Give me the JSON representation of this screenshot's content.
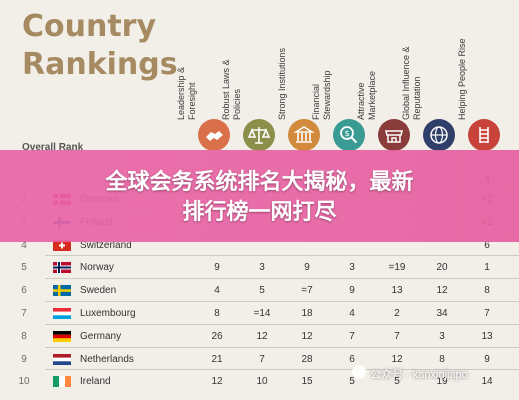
{
  "title_lines": [
    "Country",
    "Rankings"
  ],
  "overall_rank_label": "Overall Rank",
  "columns": [
    {
      "label": "Leadership & Foresight",
      "color": "#d9704a",
      "icon": "hand-shake-icon"
    },
    {
      "label": "Robust Laws & Policies",
      "color": "#8b8f4a",
      "icon": "scales-icon"
    },
    {
      "label": "Strong Institutions",
      "color": "#d28a3d",
      "icon": "building-icon"
    },
    {
      "label": "Financial Stewardship",
      "color": "#3a9a94",
      "icon": "money-magnifier-icon"
    },
    {
      "label": "Attractive Marketplace",
      "color": "#8a3c3a",
      "icon": "market-icon"
    },
    {
      "label": "Global Influence & Reputation",
      "color": "#2f3f6a",
      "icon": "globe-icon"
    },
    {
      "label": "Helping People Rise",
      "color": "#c8443a",
      "icon": "ladder-icon"
    }
  ],
  "rows": [
    {
      "rank": "2",
      "country": "Denmark",
      "flag": "denmark",
      "values": [
        "",
        "",
        "",
        "",
        "",
        "",
        "=2"
      ]
    },
    {
      "rank": "3",
      "country": "Finland",
      "flag": "finland",
      "values": [
        "",
        "",
        "",
        "",
        "",
        "",
        "=2"
      ]
    },
    {
      "rank": "4",
      "country": "Switzerland",
      "flag": "switzerland",
      "values": [
        "",
        "",
        "",
        "",
        "",
        "",
        "6"
      ]
    },
    {
      "rank": "5",
      "country": "Norway",
      "flag": "norway",
      "values": [
        "9",
        "3",
        "9",
        "3",
        "=19",
        "20",
        "1"
      ]
    },
    {
      "rank": "6",
      "country": "Sweden",
      "flag": "sweden",
      "values": [
        "4",
        "5",
        "=7",
        "9",
        "13",
        "12",
        "8"
      ]
    },
    {
      "rank": "7",
      "country": "Luxembourg",
      "flag": "luxembourg",
      "values": [
        "8",
        "=14",
        "18",
        "4",
        "2",
        "34",
        "7"
      ]
    },
    {
      "rank": "8",
      "country": "Germany",
      "flag": "germany",
      "values": [
        "26",
        "12",
        "12",
        "7",
        "7",
        "3",
        "13"
      ]
    },
    {
      "rank": "9",
      "country": "Netherlands",
      "flag": "netherlands",
      "values": [
        "21",
        "7",
        "28",
        "6",
        "12",
        "8",
        "9"
      ]
    },
    {
      "rank": "10",
      "country": "Ireland",
      "flag": "ireland",
      "values": [
        "12",
        "10",
        "15",
        "5",
        "5",
        "19",
        "14"
      ]
    }
  ],
  "top_row_partial": {
    "value_last": "4"
  },
  "banner": {
    "line1": "全球会务系统排名大揭秘，最新",
    "line2": "排行榜一网打尽"
  },
  "watermark": "公众号 · kanxinjiapo"
}
